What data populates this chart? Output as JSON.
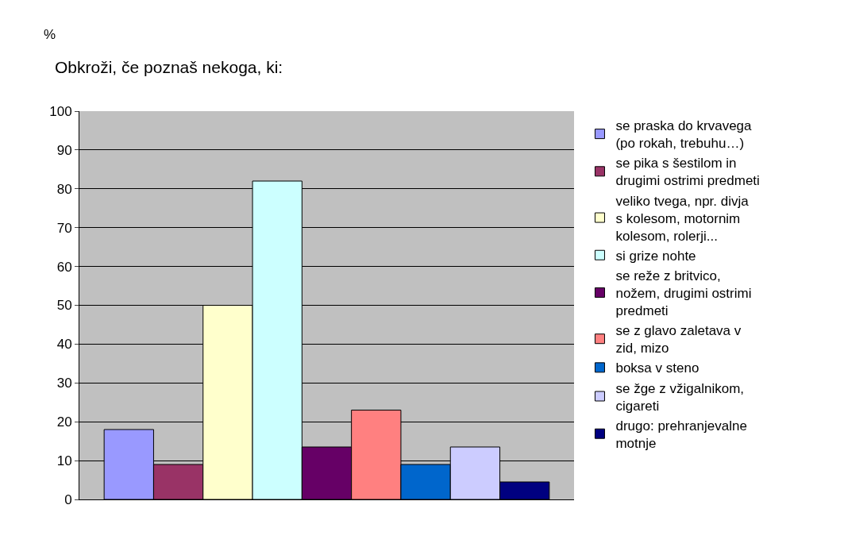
{
  "chart_data": {
    "type": "bar",
    "title": "Obkroži, če poznaš nekoga, ki:",
    "ylabel": "%",
    "categories": [
      null
    ],
    "series": [
      {
        "name": "se praska do krvavega (po rokah, trebuhu…)",
        "color": "#9999ff",
        "values": [
          18
        ]
      },
      {
        "name": "se pika s šestilom in drugimi ostrimi predmeti",
        "color": "#993366",
        "values": [
          9
        ]
      },
      {
        "name": "veliko tvega, npr. divja s kolesom, motornim kolesom, rolerji...",
        "color": "#ffffcc",
        "values": [
          50
        ]
      },
      {
        "name": "si grize nohte",
        "color": "#ccffff",
        "values": [
          82
        ]
      },
      {
        "name": "se reže z britvico, nožem, drugimi ostrimi predmeti",
        "color": "#660066",
        "values": [
          13.5
        ]
      },
      {
        "name": "se z glavo zaletava v zid, mizo",
        "color": "#ff8080",
        "values": [
          23
        ]
      },
      {
        "name": "boksa v steno",
        "color": "#0066cc",
        "values": [
          9
        ]
      },
      {
        "name": "se žge z vžigalnikom, cigareti",
        "color": "#ccccff",
        "values": [
          13.5
        ]
      },
      {
        "name": "drugo: prehranjevalne motnje",
        "color": "#000080",
        "values": [
          4.5
        ]
      }
    ],
    "ylim": [
      0,
      100
    ],
    "yticks": [
      0,
      10,
      20,
      30,
      40,
      50,
      60,
      70,
      80,
      90,
      100
    ],
    "grid": "y",
    "legend": "right",
    "tick_labels": "y"
  }
}
